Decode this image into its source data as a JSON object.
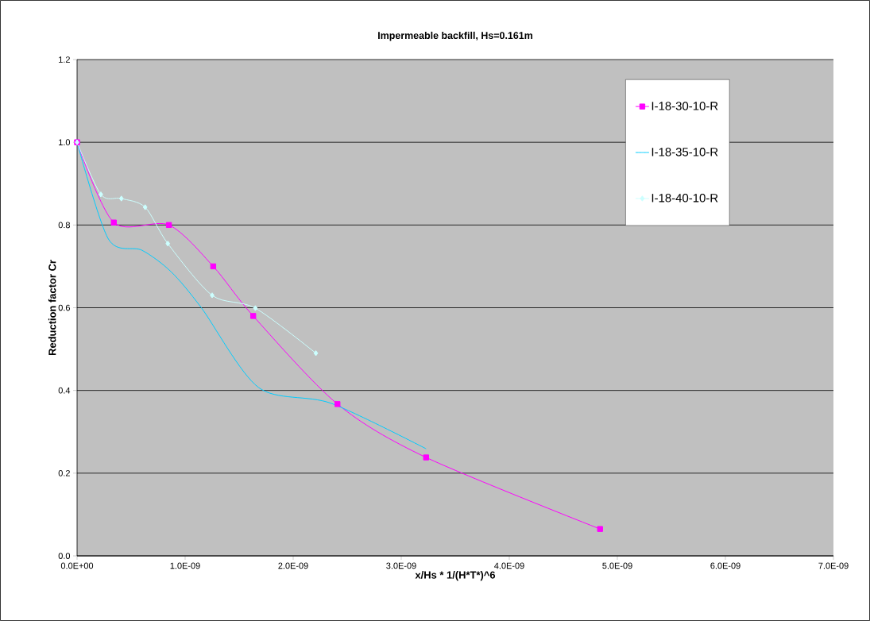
{
  "chart_data": {
    "type": "line",
    "title": "Impermeable backfill, Hs=0.161m",
    "xlabel": "x/Hs * 1/(H*T*)^6",
    "ylabel": "Reduction factor Cr",
    "xlim": [
      0,
      7e-09
    ],
    "ylim": [
      0,
      1.2
    ],
    "xticks": [
      {
        "value": 0,
        "label": "0.0E+00"
      },
      {
        "value": 1e-09,
        "label": "1.0E-09"
      },
      {
        "value": 2e-09,
        "label": "2.0E-09"
      },
      {
        "value": 3e-09,
        "label": "3.0E-09"
      },
      {
        "value": 4e-09,
        "label": "4.0E-09"
      },
      {
        "value": 5e-09,
        "label": "5.0E-09"
      },
      {
        "value": 6e-09,
        "label": "6.0E-09"
      },
      {
        "value": 7e-09,
        "label": "7.0E-09"
      }
    ],
    "yticks": [
      {
        "value": 0,
        "label": "0.0"
      },
      {
        "value": 0.2,
        "label": "0.2"
      },
      {
        "value": 0.4,
        "label": "0.4"
      },
      {
        "value": 0.6,
        "label": "0.6"
      },
      {
        "value": 0.8,
        "label": "0.8"
      },
      {
        "value": 1.0,
        "label": "1.0"
      },
      {
        "value": 1.2,
        "label": "1.2"
      }
    ],
    "grid": "y",
    "legend": "top right",
    "series": [
      {
        "name": "I-18-30-10-R",
        "color": "#ff00ff",
        "marker": "square",
        "x": [
          0,
          3.4e-10,
          8.5e-10,
          1.26e-09,
          1.63e-09,
          2.41e-09,
          3.23e-09,
          4.84e-09
        ],
        "values": [
          1.0,
          0.806,
          0.8,
          0.7,
          0.58,
          0.367,
          0.238,
          0.065
        ]
      },
      {
        "name": "I-18-35-10-R",
        "color": "#00ccff",
        "marker": "none",
        "x": [
          0,
          2.9e-10,
          6e-10,
          8.7e-10,
          1.15e-09,
          1.68e-09,
          2.35e-09,
          3.23e-09
        ],
        "values": [
          1.0,
          0.766,
          0.739,
          0.687,
          0.6,
          0.407,
          0.369,
          0.259
        ]
      },
      {
        "name": "I-18-40-10-R",
        "color": "#ccffff",
        "marker": "diamond",
        "x": [
          0,
          2.2e-10,
          4.1e-10,
          6.3e-10,
          8.4e-10,
          1.25e-09,
          1.65e-09,
          2.21e-09
        ],
        "values": [
          1.0,
          0.874,
          0.864,
          0.843,
          0.755,
          0.63,
          0.599,
          0.49
        ]
      }
    ]
  }
}
